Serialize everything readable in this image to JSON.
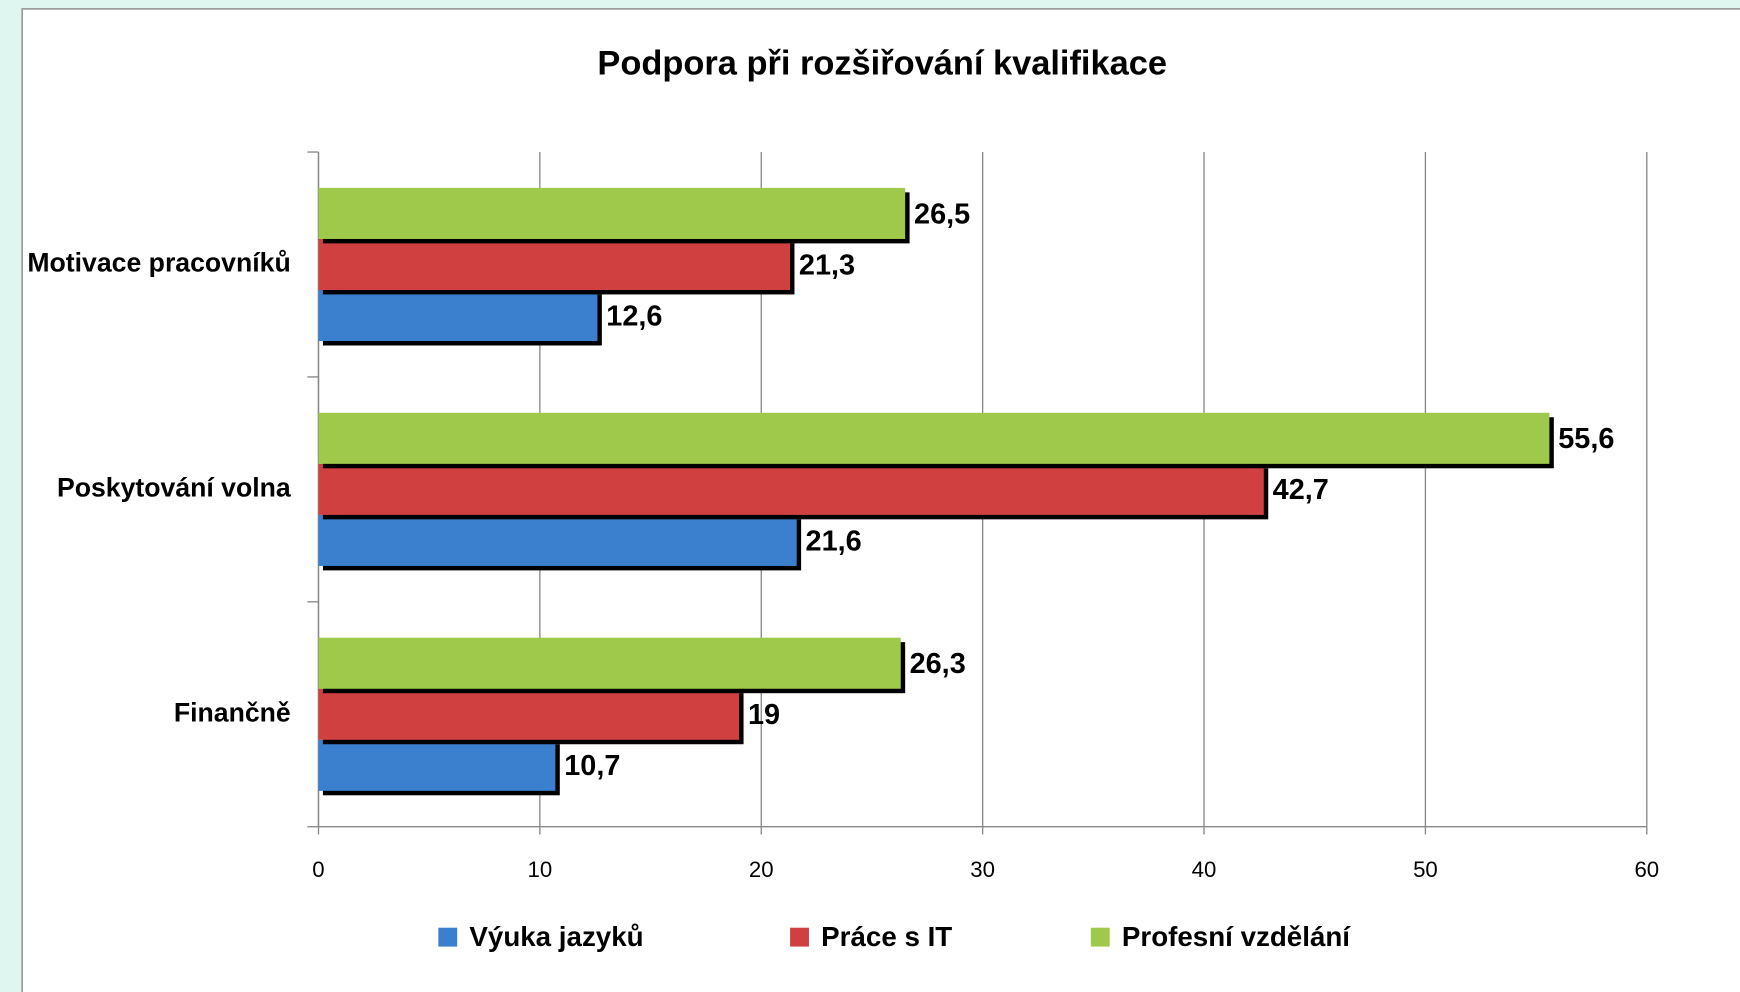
{
  "chart_data": {
    "type": "bar",
    "orientation": "horizontal",
    "title": "Podpora při rozšiřování kvalifikace",
    "categories": [
      "Motivace pracovníků",
      "Poskytování volna",
      "Finančně"
    ],
    "series": [
      {
        "name": "Výuka jazyků",
        "color": "#3b7fcf",
        "values": [
          12.6,
          21.6,
          10.7
        ],
        "value_labels": [
          "12,6",
          "21,6",
          "10,7"
        ]
      },
      {
        "name": "Práce s IT",
        "color": "#d04040",
        "values": [
          21.3,
          42.7,
          19
        ],
        "value_labels": [
          "21,3",
          "42,7",
          "19"
        ]
      },
      {
        "name": "Profesní vzdělání",
        "color": "#9fc94a",
        "values": [
          26.5,
          55.6,
          26.3
        ],
        "value_labels": [
          "26,5",
          "55,6",
          "26,3"
        ]
      }
    ],
    "xlim": [
      0,
      60
    ],
    "xticks": [
      0,
      10,
      20,
      30,
      40,
      50,
      60
    ],
    "grid": true,
    "legend": "bottom"
  }
}
